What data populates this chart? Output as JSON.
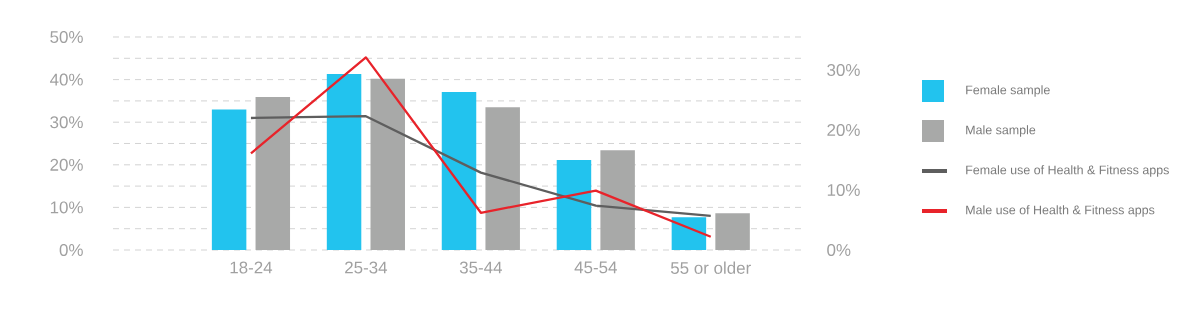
{
  "chart_data": {
    "type": "bar",
    "categories": [
      "18-24",
      "25-34",
      "35-44",
      "45-54",
      "55 or older"
    ],
    "series": [
      {
        "name": "Female sample",
        "color": "#22c3ee",
        "values": [
          33.0,
          41.3,
          37.1,
          21.1,
          7.7
        ]
      },
      {
        "name": "Male sample",
        "color": "#a8a9a8",
        "values": [
          35.9,
          40.2,
          33.5,
          23.4,
          8.6
        ]
      },
      {
        "name": "Female use of Health & Fitness apps",
        "type": "line",
        "axis": "y2",
        "color": "#5e5e5e",
        "values": [
          22.0,
          22.3,
          12.9,
          7.4,
          5.7
        ]
      },
      {
        "name": "Male use of Health & Fitness apps",
        "type": "line",
        "axis": "y2",
        "color": "#e8232a",
        "values": [
          16.1,
          32.1,
          6.2,
          9.9,
          2.2
        ]
      }
    ],
    "ylim": [
      0,
      50
    ],
    "yticks": [
      {
        "value": 0,
        "label": "0%"
      },
      {
        "value": 5,
        "label": null
      },
      {
        "value": 10,
        "label": "10%"
      },
      {
        "value": 15,
        "label": null
      },
      {
        "value": 20,
        "label": "20%"
      },
      {
        "value": 25,
        "label": null
      },
      {
        "value": 30,
        "label": "30%"
      },
      {
        "value": 35,
        "label": null
      },
      {
        "value": 40,
        "label": "40%"
      },
      {
        "value": 45,
        "label": null
      },
      {
        "value": 50,
        "label": "50%"
      }
    ],
    "y2lim": [
      0,
      35.5
    ],
    "y2ticks": [
      {
        "value": 0,
        "label": "0%"
      },
      {
        "value": 10,
        "label": "10%"
      },
      {
        "value": 20,
        "label": "20%"
      },
      {
        "value": 30,
        "label": "30%"
      }
    ],
    "grid": "y",
    "legend": "right"
  }
}
